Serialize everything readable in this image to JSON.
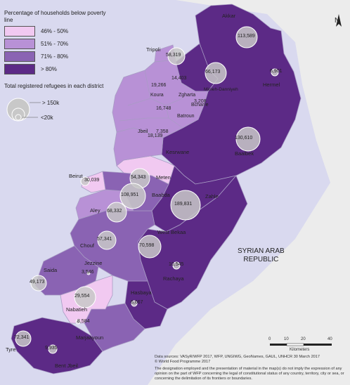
{
  "legend": {
    "poverty_title": "Percentage of households below poverty line",
    "classes": [
      {
        "label": "46% - 50%",
        "color": "#f1c9f1"
      },
      {
        "label": "51% - 70%",
        "color": "#b891d6"
      },
      {
        "label": "71% - 80%",
        "color": "#8a63b3"
      },
      {
        "label": "> 80%",
        "color": "#5c2a86"
      }
    ],
    "refugees_title": "Total registered refugees in each district",
    "size_large": "> 150k",
    "size_small": "<20k",
    "circle_color": "#c8c8c8"
  },
  "districts": {
    "akkar": {
      "name": "Akkar",
      "refugees": "113,589"
    },
    "tripoli": {
      "name": "Tripoli",
      "refugees": "58,319"
    },
    "minieh": {
      "name": "Minieh-Danniyeh",
      "refugees": "66,173"
    },
    "hermel": {
      "name": "Hermel",
      "refugees": "6,901"
    },
    "zgharta": {
      "name": "Zgharta",
      "refugees": "14,403"
    },
    "koura": {
      "name": "Koura",
      "refugees": "19,266"
    },
    "bcharre": {
      "name": "Bcharre",
      "refugees": "3,208"
    },
    "batroun": {
      "name": "Batroun",
      "refugees": "16,748"
    },
    "jbeil": {
      "name": "Jbeil",
      "refugees": "7,358"
    },
    "keserwane": {
      "name": "Kesrwane",
      "refugees": "18,139"
    },
    "baalbek": {
      "name": "Baalbek",
      "refugees": "130,610"
    },
    "beirut": {
      "name": "Beirut",
      "refugees": "30,039"
    },
    "meten": {
      "name": "Meten",
      "refugees": "54,343"
    },
    "baabda": {
      "name": "Baabda",
      "refugees": "108,951"
    },
    "zahle": {
      "name": "Zahle",
      "refugees": "189,831"
    },
    "aley": {
      "name": "Aley",
      "refugees": "68,332"
    },
    "west_bekaa": {
      "name": "West Bekaa",
      "refugees": "70,598"
    },
    "chouf": {
      "name": "Chouf",
      "refugees": "57,341"
    },
    "jezzine": {
      "name": "Jezzine",
      "refugees": "3,546"
    },
    "saida": {
      "name": "Saida",
      "refugees": "49,173"
    },
    "rachaya": {
      "name": "Rachaya",
      "refugees": "10,545"
    },
    "hasbaya": {
      "name": "Hasbaya",
      "refugees": "6,667"
    },
    "nabatieh": {
      "name": "Nabatieh",
      "refugees": "29,554"
    },
    "marjaayoun": {
      "name": "Marjaayoun",
      "refugees": "8,584"
    },
    "tyre": {
      "name": "Tyre",
      "refugees": "72,341"
    },
    "bent_jbeil": {
      "name": "Bent Jbeil",
      "refugees": "9,935"
    }
  },
  "country": {
    "line1": "SYRIAN ARAB",
    "line2": "REPUBLIC"
  },
  "compass": {
    "north": "N"
  },
  "scale": {
    "ticks": [
      "0",
      "10",
      "20",
      "40"
    ],
    "unit": "Kilometers"
  },
  "footer": {
    "sources": "Data sources: VASyR/WFP 2017, WFP, UNGIWG, GeoNames, GAUL, UNHCR 30 March 2017",
    "copyright": "© World Food Programme 2017",
    "disclaimer": "The designation employed and the presentation of material in the map(s) do not imply the expression of any opinion on the part of WFP concerning the legal of constitutional status of any country, territory, city or sea, or concerning the delimitation of its frontiers or boundaries."
  }
}
